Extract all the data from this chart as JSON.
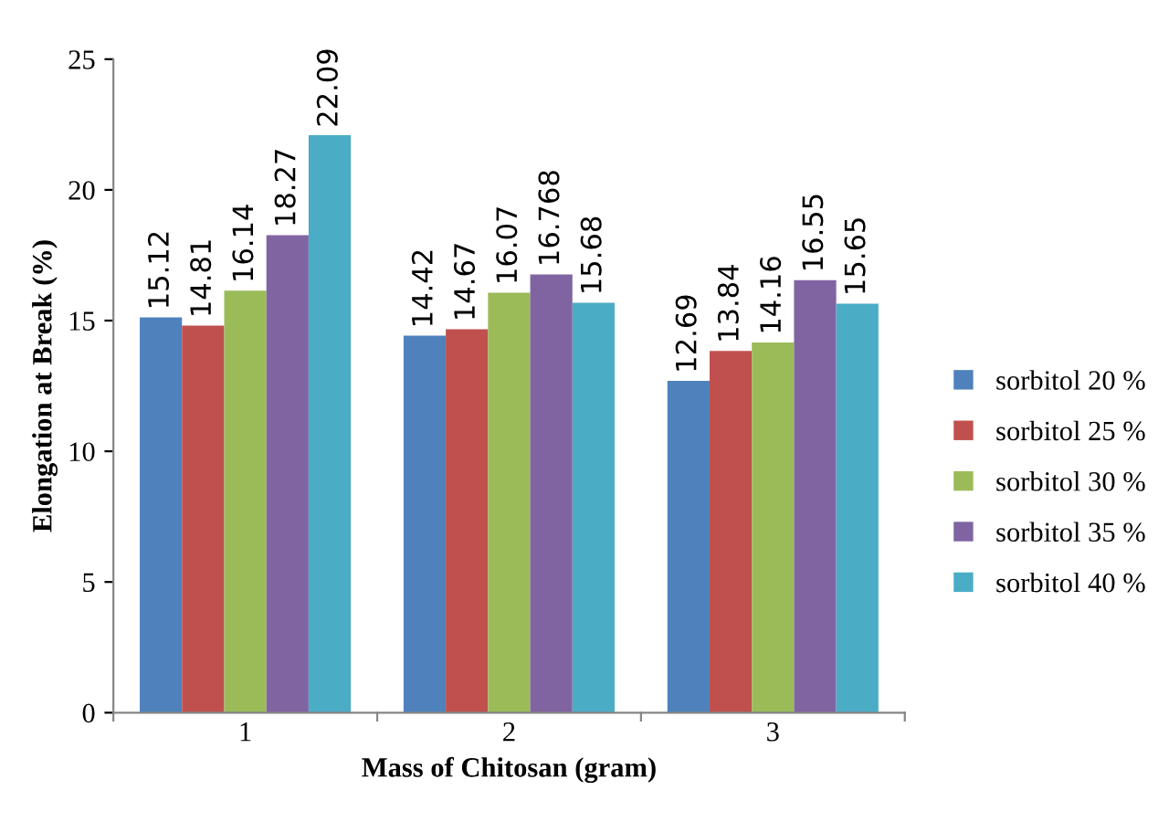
{
  "chart_data": {
    "type": "bar",
    "xlabel": "Mass of Chitosan (gram)",
    "ylabel": "Elongation at Break (%)",
    "categories": [
      "1",
      "2",
      "3"
    ],
    "series": [
      {
        "name": "sorbitol 20 %",
        "color": "#4f81bd",
        "values": [
          15.12,
          14.42,
          12.69
        ]
      },
      {
        "name": "sorbitol 25 %",
        "color": "#c0504d",
        "values": [
          14.81,
          14.67,
          13.84
        ]
      },
      {
        "name": "sorbitol 30 %",
        "color": "#9bbb59",
        "values": [
          16.14,
          16.07,
          14.16
        ]
      },
      {
        "name": "sorbitol 35 %",
        "color": "#8064a2",
        "values": [
          18.27,
          16.768,
          16.55
        ]
      },
      {
        "name": "sorbitol 40 %",
        "color": "#4bacc6",
        "values": [
          22.09,
          15.68,
          15.65
        ]
      }
    ],
    "ylim": [
      0,
      25
    ],
    "yticks": [
      0,
      5,
      10,
      15,
      20,
      25
    ],
    "grid": false,
    "legend": "right",
    "data_labels": true
  }
}
